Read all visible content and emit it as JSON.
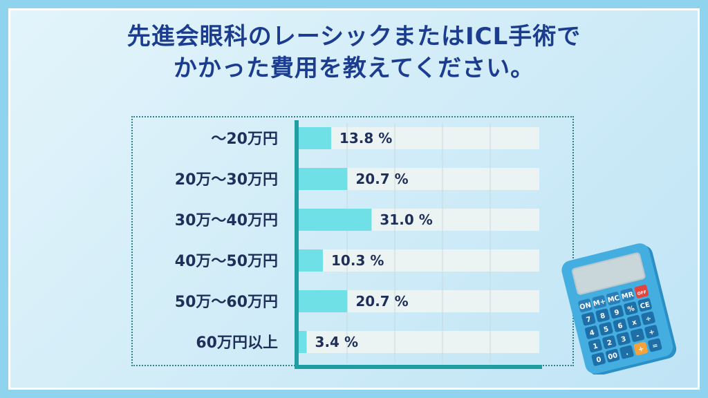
{
  "title": {
    "line1": "先進会眼科のレーシックまたはICL手術で",
    "line2": "かかった費用を教えてください。"
  },
  "colors": {
    "bar": "#6ee0e6",
    "axis": "#1e9ea0",
    "track": "#ecf4f3",
    "title": "#1c3d8f"
  },
  "calculator": {
    "icon": "calculator-icon",
    "keys_row1": [
      "ON",
      "M+",
      "MC",
      "MR",
      "OFF"
    ],
    "keys_row2": [
      "7",
      "8",
      "9",
      "%",
      "CE"
    ],
    "keys_row3": [
      "4",
      "5",
      "6",
      "x",
      "÷"
    ],
    "keys_row4": [
      "1",
      "2",
      "3",
      "-",
      "+"
    ],
    "keys_row5": [
      "0",
      "00",
      ".",
      "+",
      "="
    ]
  },
  "chart_data": {
    "type": "bar",
    "orientation": "horizontal",
    "categories": [
      "〜20万円",
      "20万〜30万円",
      "30万〜40万円",
      "40万〜50万円",
      "50万〜60万円",
      "60万円以上"
    ],
    "values": [
      13.8,
      20.7,
      31.0,
      10.3,
      20.7,
      3.4
    ],
    "value_labels": [
      "13.8 %",
      "20.7 %",
      "31.0 %",
      "10.3 %",
      "20.7 %",
      "3.4 %"
    ],
    "xlim": [
      0,
      100
    ],
    "grid": true,
    "legend": "none"
  }
}
